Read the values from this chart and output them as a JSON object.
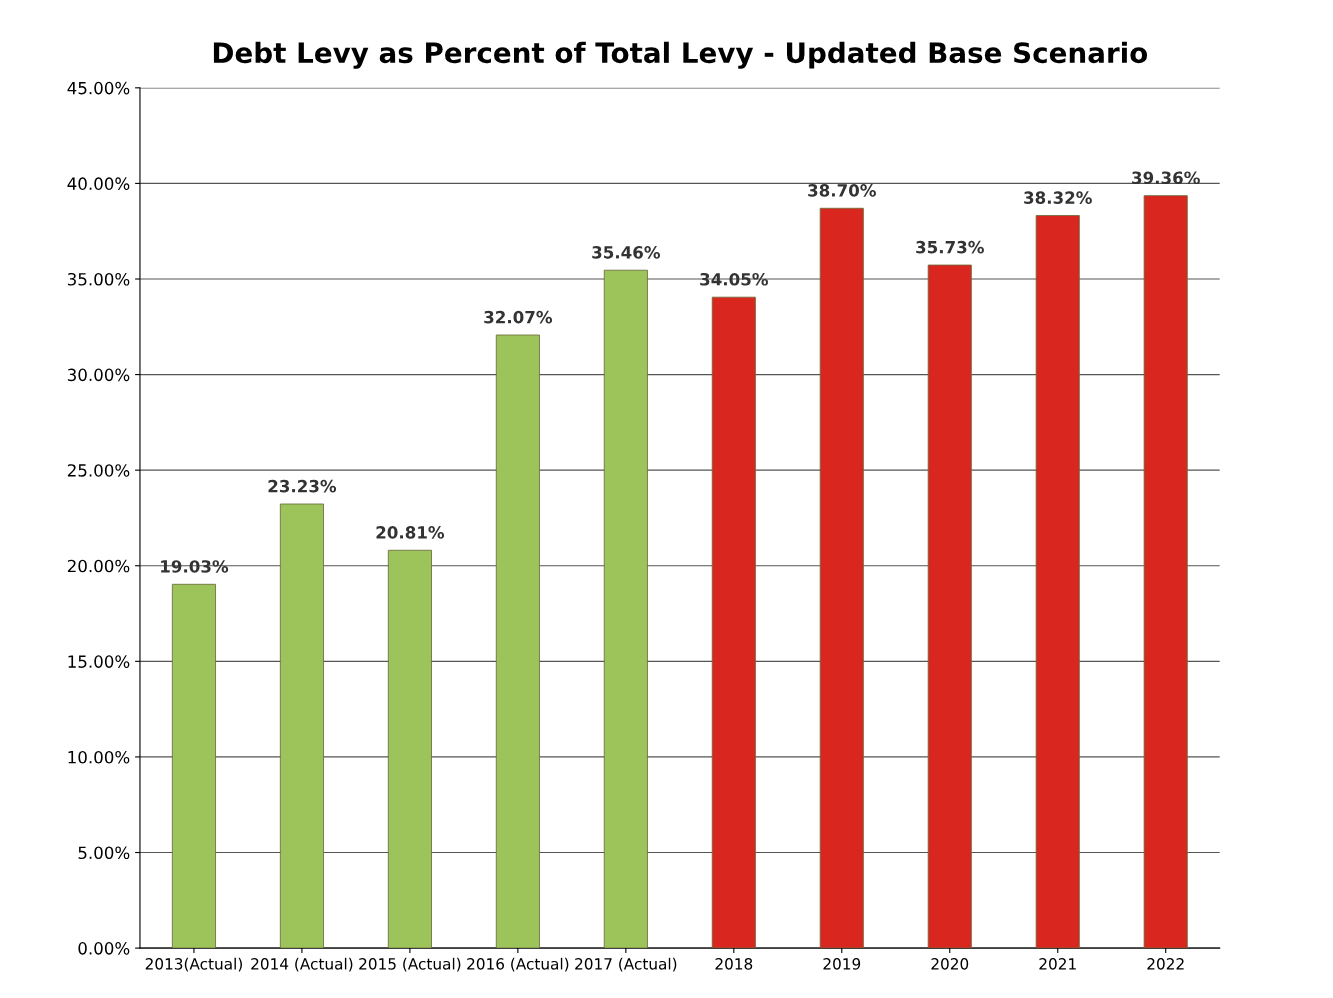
{
  "chart_data": {
    "type": "bar",
    "title": "Debt Levy as Percent of Total Levy - Updated Base Scenario",
    "categories": [
      "2013(Actual)",
      "2014 (Actual)",
      "2015 (Actual)",
      "2016 (Actual)",
      "2017 (Actual)",
      "2018",
      "2019",
      "2020",
      "2021",
      "2022"
    ],
    "values": [
      19.03,
      23.23,
      20.81,
      32.07,
      35.46,
      34.05,
      38.7,
      35.73,
      38.32,
      39.36
    ],
    "value_labels": [
      "19.03%",
      "23.23%",
      "20.81%",
      "32.07%",
      "35.46%",
      "34.05%",
      "38.70%",
      "35.73%",
      "38.32%",
      "39.36%"
    ],
    "colors": [
      "#9cc45a",
      "#9cc45a",
      "#9cc45a",
      "#9cc45a",
      "#9cc45a",
      "#d9271f",
      "#d9271f",
      "#d9271f",
      "#d9271f",
      "#d9271f"
    ],
    "ylim": [
      0,
      45
    ],
    "yticks": [
      {
        "value": 0,
        "label": "0.00%"
      },
      {
        "value": 5,
        "label": "5.00%"
      },
      {
        "value": 10,
        "label": "10.00%"
      },
      {
        "value": 15,
        "label": "15.00%"
      },
      {
        "value": 20,
        "label": "20.00%"
      },
      {
        "value": 25,
        "label": "25.00%"
      },
      {
        "value": 30,
        "label": "30.00%"
      },
      {
        "value": 35,
        "label": "35.00%"
      },
      {
        "value": 40,
        "label": "40.00%"
      },
      {
        "value": 45,
        "label": "45.00%"
      }
    ],
    "grid": "y"
  }
}
